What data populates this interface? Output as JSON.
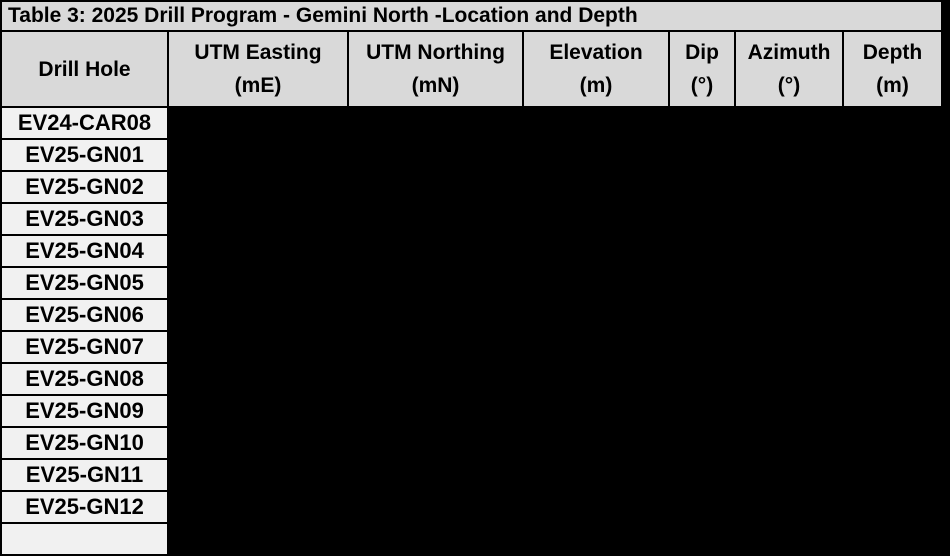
{
  "page": {
    "background": "#000000"
  },
  "table": {
    "title": "Table 3: 2025 Drill Program - Gemini North -Location and Depth",
    "columns": [
      {
        "label": "Drill Hole",
        "unit": ""
      },
      {
        "label": "UTM Easting",
        "unit": "(mE)"
      },
      {
        "label": "UTM Northing",
        "unit": "(mN)"
      },
      {
        "label": "Elevation",
        "unit": "(m)"
      },
      {
        "label": "Dip",
        "unit": "(°)"
      },
      {
        "label": "Azimuth",
        "unit": "(°)"
      },
      {
        "label": "Depth",
        "unit": "(m)"
      }
    ],
    "rows": [
      {
        "drill_hole": "EV24-CAR08"
      },
      {
        "drill_hole": "EV25-GN01"
      },
      {
        "drill_hole": "EV25-GN02"
      },
      {
        "drill_hole": "EV25-GN03"
      },
      {
        "drill_hole": "EV25-GN04"
      },
      {
        "drill_hole": "EV25-GN05"
      },
      {
        "drill_hole": "EV25-GN06"
      },
      {
        "drill_hole": "EV25-GN07"
      },
      {
        "drill_hole": "EV25-GN08"
      },
      {
        "drill_hole": "EV25-GN09"
      },
      {
        "drill_hole": "EV25-GN10"
      },
      {
        "drill_hole": "EV25-GN11"
      },
      {
        "drill_hole": "EV25-GN12"
      }
    ],
    "data_cells_state": "redacted-black",
    "colors": {
      "header_bg": "#d9d9d9",
      "row_label_bg": "#f1f1f1",
      "redacted_bg": "#000000",
      "border": "#000000",
      "text": "#000000"
    }
  }
}
